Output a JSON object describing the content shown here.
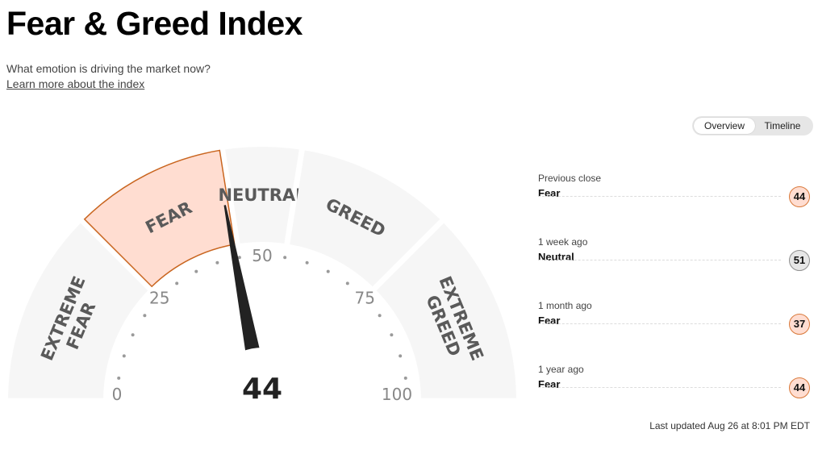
{
  "page": {
    "title": "Fear & Greed Index",
    "subtitle": "What emotion is driving the market now?",
    "learn_more": "Learn more about the index"
  },
  "view_toggle": {
    "options": [
      {
        "label": "Overview",
        "active": true
      },
      {
        "label": "Timeline",
        "active": false
      }
    ]
  },
  "gauge": {
    "value": 44,
    "value_label": "44",
    "current_rating": "FEAR",
    "scale": {
      "min": 0,
      "max": 100
    },
    "tick_labels": [
      "0",
      "25",
      "50",
      "75",
      "100"
    ],
    "segments": [
      {
        "label": "EXTREME FEAR",
        "lines": [
          "EXTREME",
          "FEAR"
        ],
        "from": 0,
        "to": 25
      },
      {
        "label": "FEAR",
        "lines": [
          "FEAR"
        ],
        "from": 25,
        "to": 45
      },
      {
        "label": "NEUTRAL",
        "lines": [
          "NEUTRAL"
        ],
        "from": 45,
        "to": 55
      },
      {
        "label": "GREED",
        "lines": [
          "GREED"
        ],
        "from": 55,
        "to": 75
      },
      {
        "label": "EXTREME GREED",
        "lines": [
          "EXTREME",
          "GREED"
        ],
        "from": 75,
        "to": 100
      }
    ],
    "colors": {
      "segment": "#f6f6f6",
      "active_fill": "#ffddd1",
      "active_stroke": "#c9651f",
      "label": "#5a5a5a",
      "needle": "#222222"
    }
  },
  "history": [
    {
      "label": "Previous close",
      "rating": "Fear",
      "value": "44",
      "badge_fill": "#ffddd1",
      "badge_stroke": "#d9793a"
    },
    {
      "label": "1 week ago",
      "rating": "Neutral",
      "value": "51",
      "badge_fill": "#e6e6e6",
      "badge_stroke": "#8f8f8f"
    },
    {
      "label": "1 month ago",
      "rating": "Fear",
      "value": "37",
      "badge_fill": "#ffddd1",
      "badge_stroke": "#d9793a"
    },
    {
      "label": "1 year ago",
      "rating": "Fear",
      "value": "44",
      "badge_fill": "#ffddd1",
      "badge_stroke": "#d9793a"
    }
  ],
  "last_updated": "Last updated Aug 26 at 8:01 PM EDT"
}
